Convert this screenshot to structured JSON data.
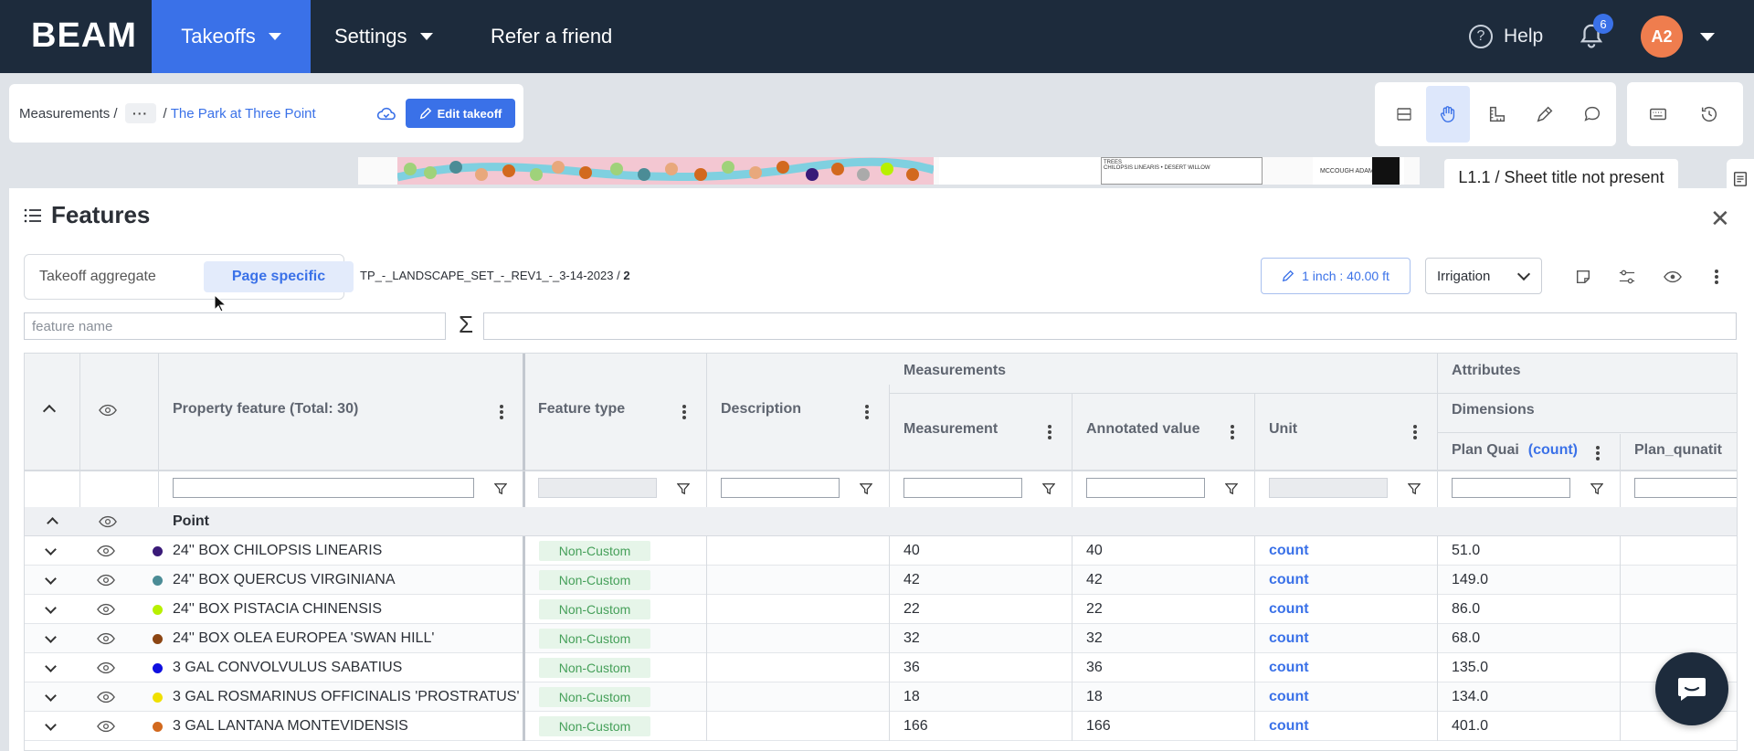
{
  "nav": {
    "logo": "BEAM",
    "items": [
      {
        "label": "Takeoffs",
        "active": true,
        "caret": true
      },
      {
        "label": "Settings",
        "active": false,
        "caret": true
      },
      {
        "label": "Refer a friend",
        "active": false,
        "caret": false
      }
    ],
    "help_label": "Help",
    "notification_count": "6",
    "avatar_initials": "A2"
  },
  "breadcrumb": {
    "root": "Measurements /",
    "ellipsis": "···",
    "separator": "/",
    "project": "The Park at Three Point",
    "edit_button": "Edit takeoff"
  },
  "drawing": {
    "sheet_header": "TREES",
    "sheet_line": "CHILOPSIS LINEARIS • DESERT WILLOW",
    "logo_text": "MCCOUGH ADAMSON"
  },
  "sheet_tooltip": "L1.1 / Sheet title not present",
  "features": {
    "title": "Features",
    "tabs": {
      "aggregate": "Takeoff aggregate",
      "page_specific": "Page specific"
    },
    "file_name": "TP_-_LANDSCAPE_SET_-_REV1_-_3-14-2023 /",
    "page_number": "2",
    "scale": "1 inch : 40.00 ft",
    "layer": "Irrigation",
    "search_placeholder": "feature name",
    "sigma": "Σ"
  },
  "grid": {
    "headers": {
      "property_feature": "Property feature (Total: 30)",
      "feature_type": "Feature type",
      "description": "Description",
      "measurements_group": "Measurements",
      "measurement": "Measurement",
      "annotated_value": "Annotated value",
      "unit": "Unit",
      "attributes_group": "Attributes",
      "dimensions": "Dimensions",
      "plan_quantity": "Plan Quai",
      "plan_quantity_unit": "(count)",
      "plan_qunatit": "Plan_qunatit"
    },
    "group_label": "Point",
    "rows": [
      {
        "name": "24'' BOX CHILOPSIS LINEARIS",
        "color": "#3a1a78",
        "type": "Non-Custom",
        "measurement": "40",
        "annotated": "40",
        "unit": "count",
        "plan_qty": "51.0"
      },
      {
        "name": "24'' BOX QUERCUS VIRGINIANA",
        "color": "#4b8c96",
        "type": "Non-Custom",
        "measurement": "42",
        "annotated": "42",
        "unit": "count",
        "plan_qty": "149.0"
      },
      {
        "name": "24'' BOX PISTACIA CHINENSIS",
        "color": "#b8f000",
        "type": "Non-Custom",
        "measurement": "22",
        "annotated": "22",
        "unit": "count",
        "plan_qty": "86.0"
      },
      {
        "name": "24'' BOX OLEA EUROPEA 'SWAN HILL'",
        "color": "#8b4513",
        "type": "Non-Custom",
        "measurement": "32",
        "annotated": "32",
        "unit": "count",
        "plan_qty": "68.0"
      },
      {
        "name": "3 GAL CONVOLVULUS SABATIUS",
        "color": "#1010e0",
        "type": "Non-Custom",
        "measurement": "36",
        "annotated": "36",
        "unit": "count",
        "plan_qty": "135.0"
      },
      {
        "name": "3 GAL ROSMARINUS OFFICINALIS 'PROSTRATUS'",
        "color": "#f0e000",
        "type": "Non-Custom",
        "measurement": "18",
        "annotated": "18",
        "unit": "count",
        "plan_qty": "134.0"
      },
      {
        "name": "3 GAL LANTANA MONTEVIDENSIS",
        "color": "#d2691e",
        "type": "Non-Custom",
        "measurement": "166",
        "annotated": "166",
        "unit": "count",
        "plan_qty": "401.0"
      }
    ]
  },
  "colors": {
    "nav_bg": "#1d2b3c",
    "accent": "#3a71e8",
    "tag_bg": "#e6f5e9",
    "tag_text": "#46a05a",
    "avatar": "#ef7d4e"
  },
  "icons": [
    "help-icon",
    "bell-icon",
    "cloud-icon",
    "pencil-icon",
    "rows-icon",
    "hand-icon",
    "ruler-icon",
    "pen-icon",
    "comment-icon",
    "keyboard-icon",
    "history-icon",
    "document-icon",
    "list-icon",
    "close-icon",
    "note-icon",
    "sliders-icon",
    "eye-icon",
    "kebab-icon",
    "filter-icon",
    "chat-icon"
  ]
}
